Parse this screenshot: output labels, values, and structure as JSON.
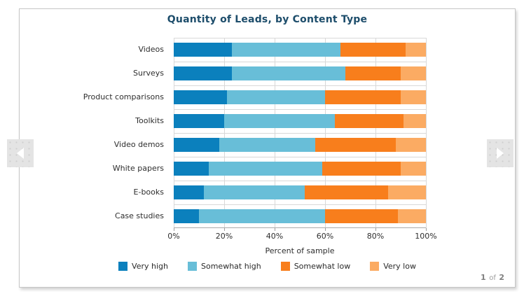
{
  "panel": {
    "pager": {
      "current": "1",
      "separator": "of",
      "total": "2"
    }
  },
  "carousel": {
    "prev_icon": "left-arrow",
    "next_icon": "right-arrow"
  },
  "colors": {
    "very_high": "#0b80bd",
    "somewhat_high": "#68bed8",
    "somewhat_low": "#f87e1c",
    "very_low": "#fbab63",
    "title": "#1d4d6b",
    "gridline": "#d8d8d8",
    "panel_border": "#c6c6c6"
  },
  "chart_data": {
    "type": "bar",
    "orientation": "horizontal",
    "stacked": true,
    "title": "Quantity of Leads, by Content Type",
    "categories": [
      "Videos",
      "Surveys",
      "Product comparisons",
      "Toolkits",
      "Video demos",
      "White papers",
      "E-books",
      "Case studies"
    ],
    "series": [
      {
        "name": "Very high",
        "color": "#0b80bd",
        "values": [
          23,
          23,
          21,
          20,
          18,
          14,
          12,
          10
        ]
      },
      {
        "name": "Somewhat high",
        "color": "#68bed8",
        "values": [
          43,
          45,
          39,
          44,
          38,
          45,
          40,
          50
        ]
      },
      {
        "name": "Somewhat low",
        "color": "#f87e1c",
        "values": [
          26,
          22,
          30,
          27,
          32,
          31,
          33,
          29
        ]
      },
      {
        "name": "Very low",
        "color": "#fbab63",
        "values": [
          8,
          10,
          10,
          9,
          12,
          10,
          15,
          11
        ]
      }
    ],
    "xlabel": "Percent of sample",
    "x_ticks": [
      "0%",
      "20%",
      "40%",
      "60%",
      "80%",
      "100%"
    ],
    "xlim": [
      0,
      100
    ],
    "grid": true,
    "legend_position": "bottom"
  }
}
